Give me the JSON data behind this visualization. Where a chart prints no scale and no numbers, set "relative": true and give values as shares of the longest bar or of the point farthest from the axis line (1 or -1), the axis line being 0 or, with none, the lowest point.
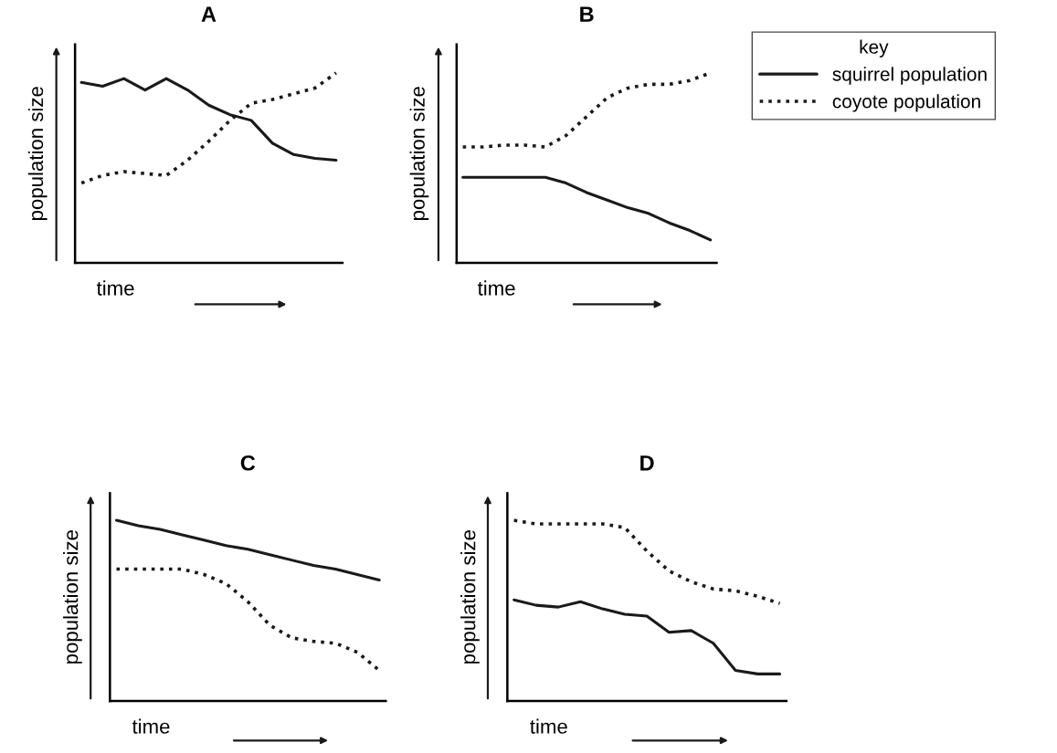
{
  "chart_data": [
    {
      "type": "line",
      "title": "A",
      "xlabel": "time",
      "ylabel": "population size",
      "relative": true,
      "legend": false,
      "tick_labels": false,
      "categories": [
        null,
        null,
        null,
        null,
        null,
        null,
        null,
        null,
        null,
        null,
        null,
        null,
        null
      ],
      "series": [
        {
          "color": "#1a1a1a",
          "line_style": "solid",
          "values": [
            0.95,
            0.93,
            0.97,
            0.91,
            0.97,
            0.91,
            0.83,
            0.78,
            0.75,
            0.63,
            0.57,
            0.55,
            0.54
          ]
        },
        {
          "color": "#1a1a1a",
          "line_style": "dotted",
          "values": [
            0.42,
            0.46,
            0.48,
            0.47,
            0.46,
            0.54,
            0.64,
            0.75,
            0.84,
            0.86,
            0.89,
            0.92,
            1
          ]
        }
      ]
    },
    {
      "type": "line",
      "title": "B",
      "xlabel": "time",
      "ylabel": "population size",
      "relative": true,
      "legend": "right",
      "legend_title": "key",
      "tick_labels": false,
      "categories": [
        null,
        null,
        null,
        null,
        null,
        null,
        null,
        null,
        null,
        null,
        null,
        null,
        null
      ],
      "series": [
        {
          "name": "squirrel population",
          "color": "#1a1a1a",
          "line_style": "solid",
          "values": [
            0.45,
            0.45,
            0.45,
            0.45,
            0.45,
            0.42,
            0.37,
            0.33,
            0.29,
            0.26,
            0.21,
            0.17,
            0.12
          ]
        },
        {
          "name": "coyote population",
          "color": "#1a1a1a",
          "line_style": "dotted",
          "values": [
            0.61,
            0.61,
            0.62,
            0.62,
            0.61,
            0.67,
            0.77,
            0.87,
            0.92,
            0.94,
            0.94,
            0.96,
            1
          ]
        }
      ]
    },
    {
      "type": "line",
      "title": "C",
      "xlabel": "time",
      "ylabel": "population size",
      "relative": true,
      "legend": false,
      "tick_labels": false,
      "categories": [
        null,
        null,
        null,
        null,
        null,
        null,
        null,
        null,
        null,
        null,
        null,
        null,
        null
      ],
      "series": [
        {
          "color": "#1a1a1a",
          "line_style": "solid",
          "values": [
            1,
            0.97,
            0.95,
            0.92,
            0.89,
            0.86,
            0.84,
            0.81,
            0.78,
            0.75,
            0.73,
            0.7,
            0.67
          ]
        },
        {
          "color": "#1a1a1a",
          "line_style": "dotted",
          "values": [
            0.73,
            0.73,
            0.73,
            0.73,
            0.7,
            0.65,
            0.55,
            0.42,
            0.35,
            0.33,
            0.32,
            0.27,
            0.17
          ]
        }
      ]
    },
    {
      "type": "line",
      "title": "D",
      "xlabel": "time",
      "ylabel": "population size",
      "relative": true,
      "legend": false,
      "tick_labels": false,
      "categories": [
        null,
        null,
        null,
        null,
        null,
        null,
        null,
        null,
        null,
        null,
        null,
        null,
        null
      ],
      "series": [
        {
          "color": "#1a1a1a",
          "line_style": "solid",
          "values": [
            0.56,
            0.53,
            0.52,
            0.55,
            0.51,
            0.48,
            0.47,
            0.38,
            0.39,
            0.32,
            0.17,
            0.15,
            0.15
          ]
        },
        {
          "color": "#1a1a1a",
          "line_style": "dotted",
          "values": [
            1,
            0.98,
            0.98,
            0.98,
            0.98,
            0.96,
            0.83,
            0.72,
            0.66,
            0.62,
            0.61,
            0.58,
            0.54
          ]
        }
      ]
    }
  ]
}
